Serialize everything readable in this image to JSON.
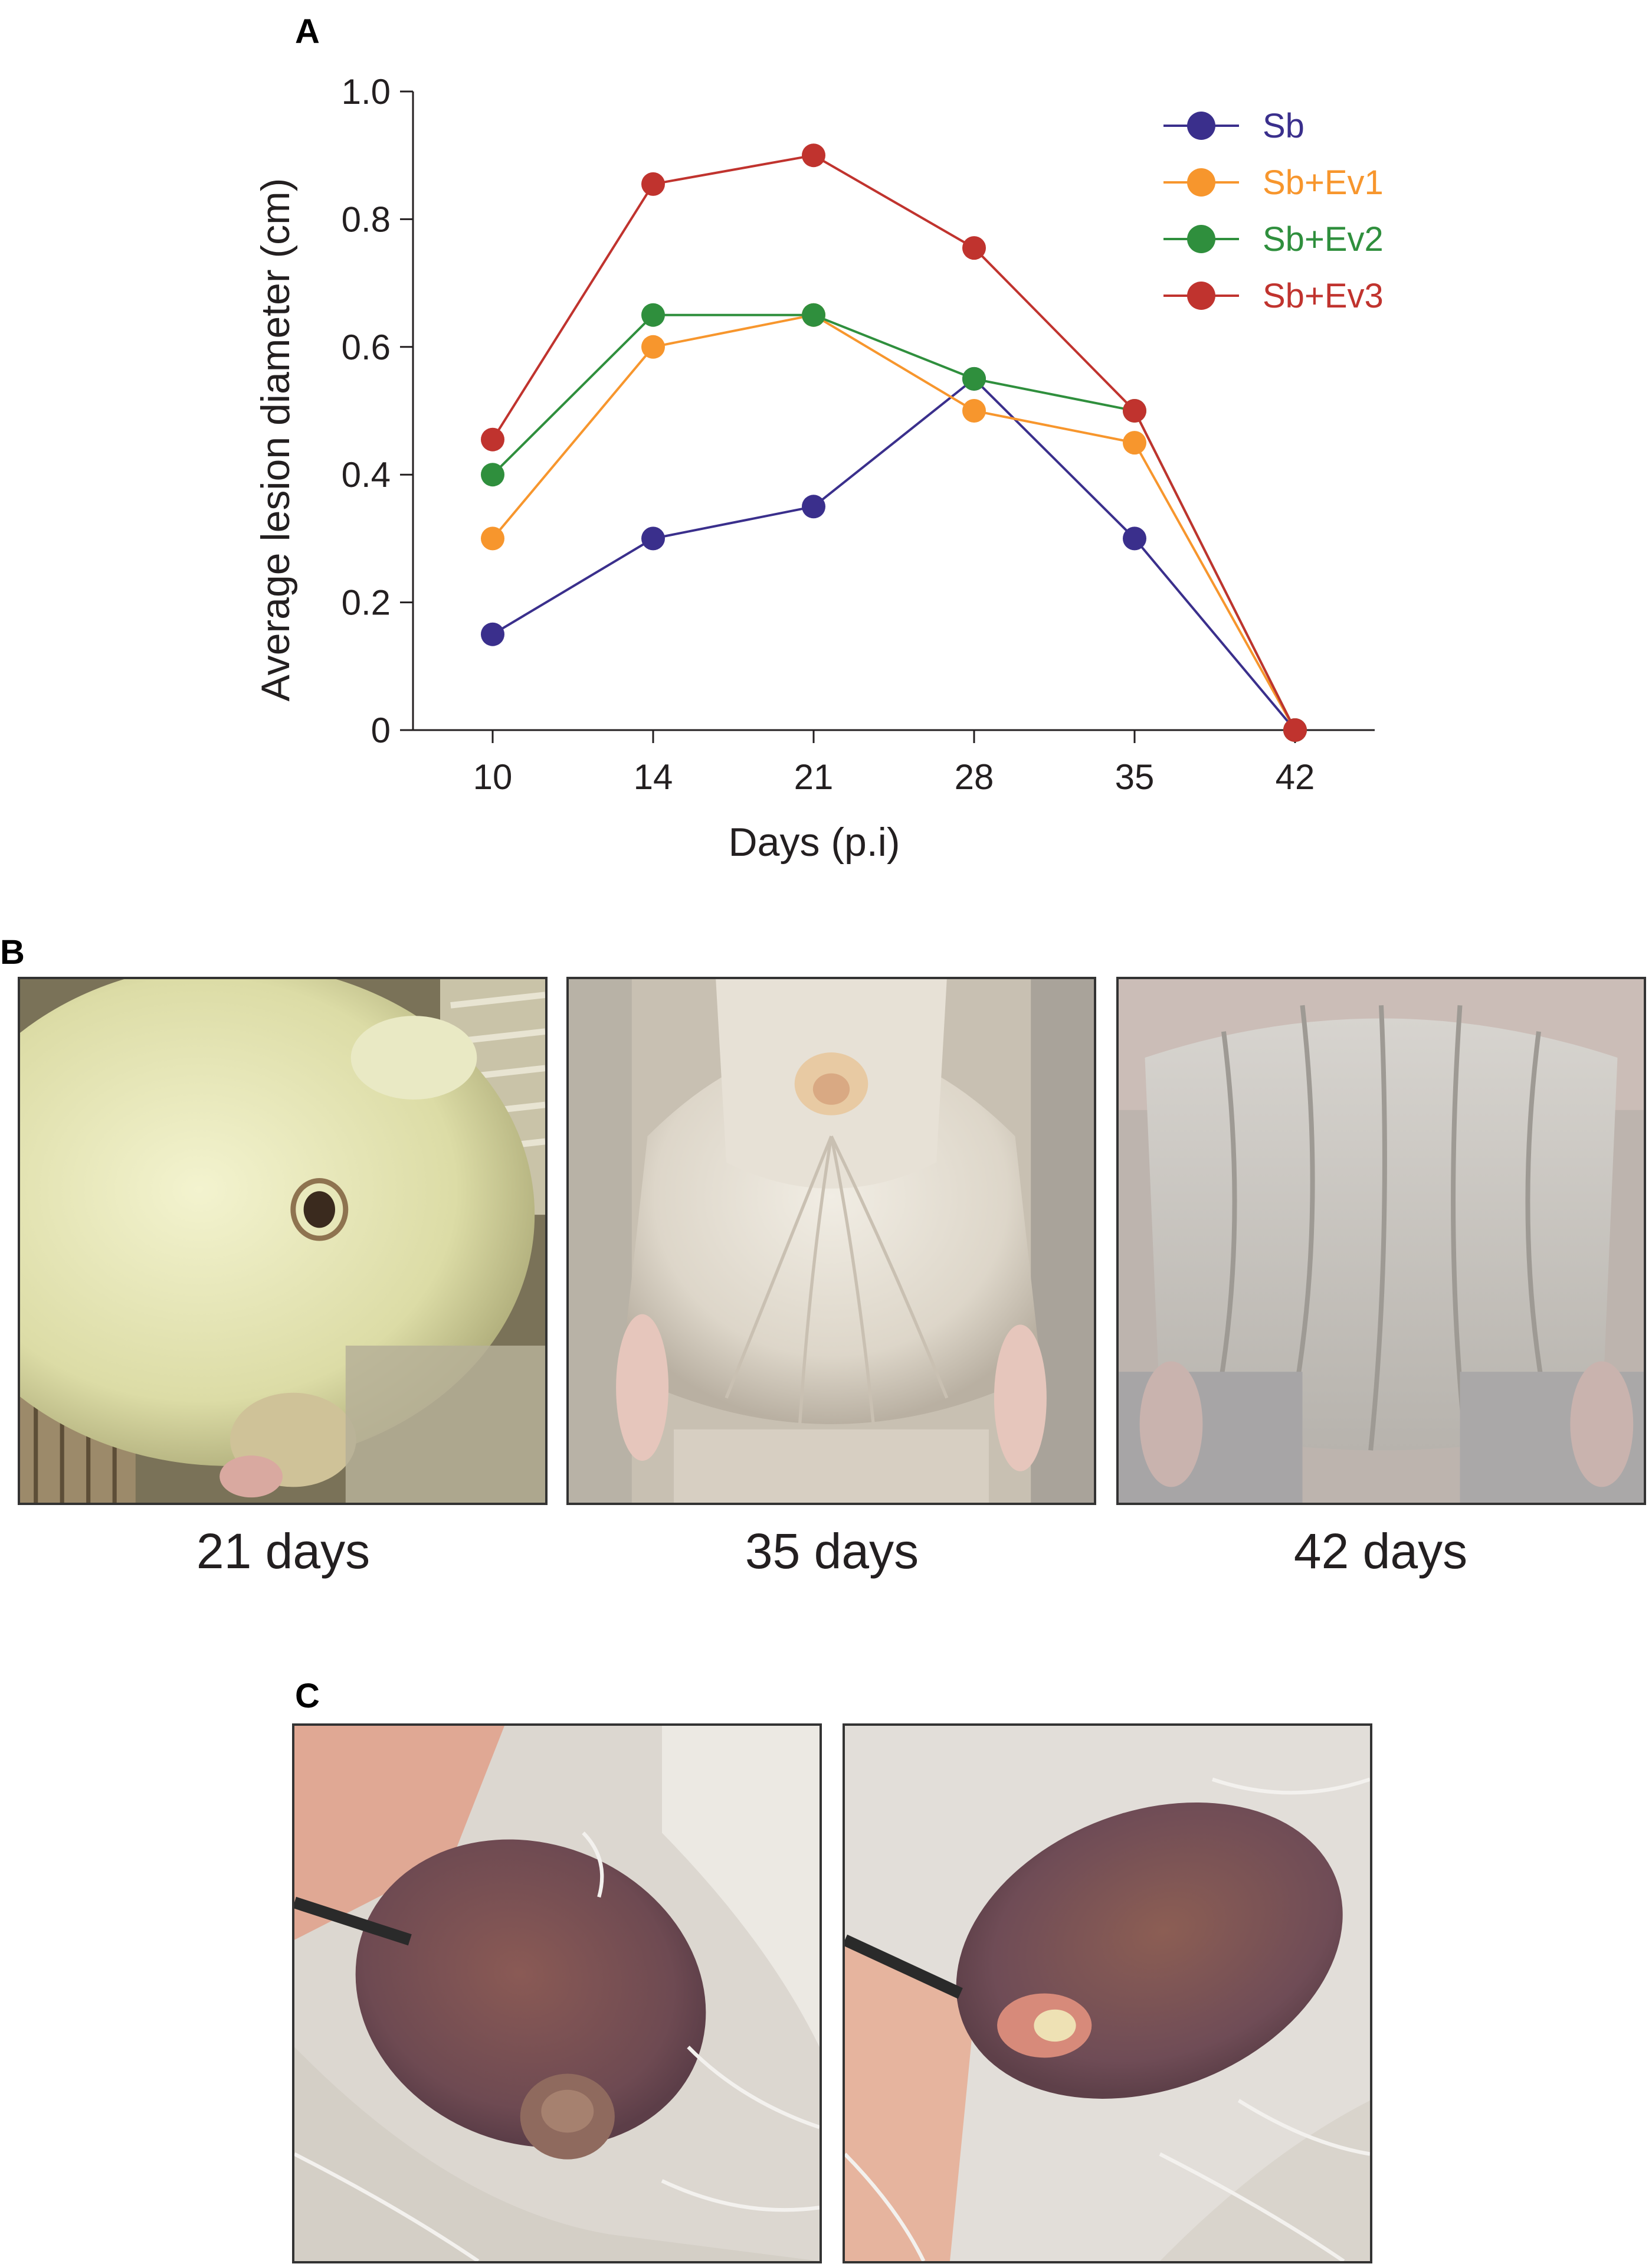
{
  "panels": {
    "a": "A",
    "b": "B",
    "c": "C"
  },
  "chart_data": {
    "type": "line",
    "xlabel": "Days (p.i)",
    "ylabel": "Average lesion diameter (cm)",
    "categories": [
      "10",
      "14",
      "21",
      "28",
      "35",
      "42"
    ],
    "ylim": [
      0,
      1.0
    ],
    "yticks": [
      "0",
      "0.2",
      "0.4",
      "0.6",
      "0.8",
      "1.0"
    ],
    "grid": false,
    "legend_position": "top-right",
    "series": [
      {
        "name": "Sb",
        "color": "#3a2f8c",
        "values": [
          0.15,
          0.3,
          0.35,
          0.55,
          0.3,
          0.0
        ]
      },
      {
        "name": "Sb+Ev1",
        "color": "#f7962d",
        "values": [
          0.3,
          0.6,
          0.65,
          0.5,
          0.45,
          0.0
        ]
      },
      {
        "name": "Sb+Ev2",
        "color": "#2f8f3d",
        "values": [
          0.4,
          0.65,
          0.65,
          0.55,
          0.5,
          0.0
        ]
      },
      {
        "name": "Sb+Ev3",
        "color": "#c0332e",
        "values": [
          0.455,
          0.855,
          0.9,
          0.755,
          0.5,
          0.0
        ]
      }
    ]
  },
  "photos_b": {
    "captions": [
      "21 days",
      "35 days",
      "42 days"
    ]
  }
}
